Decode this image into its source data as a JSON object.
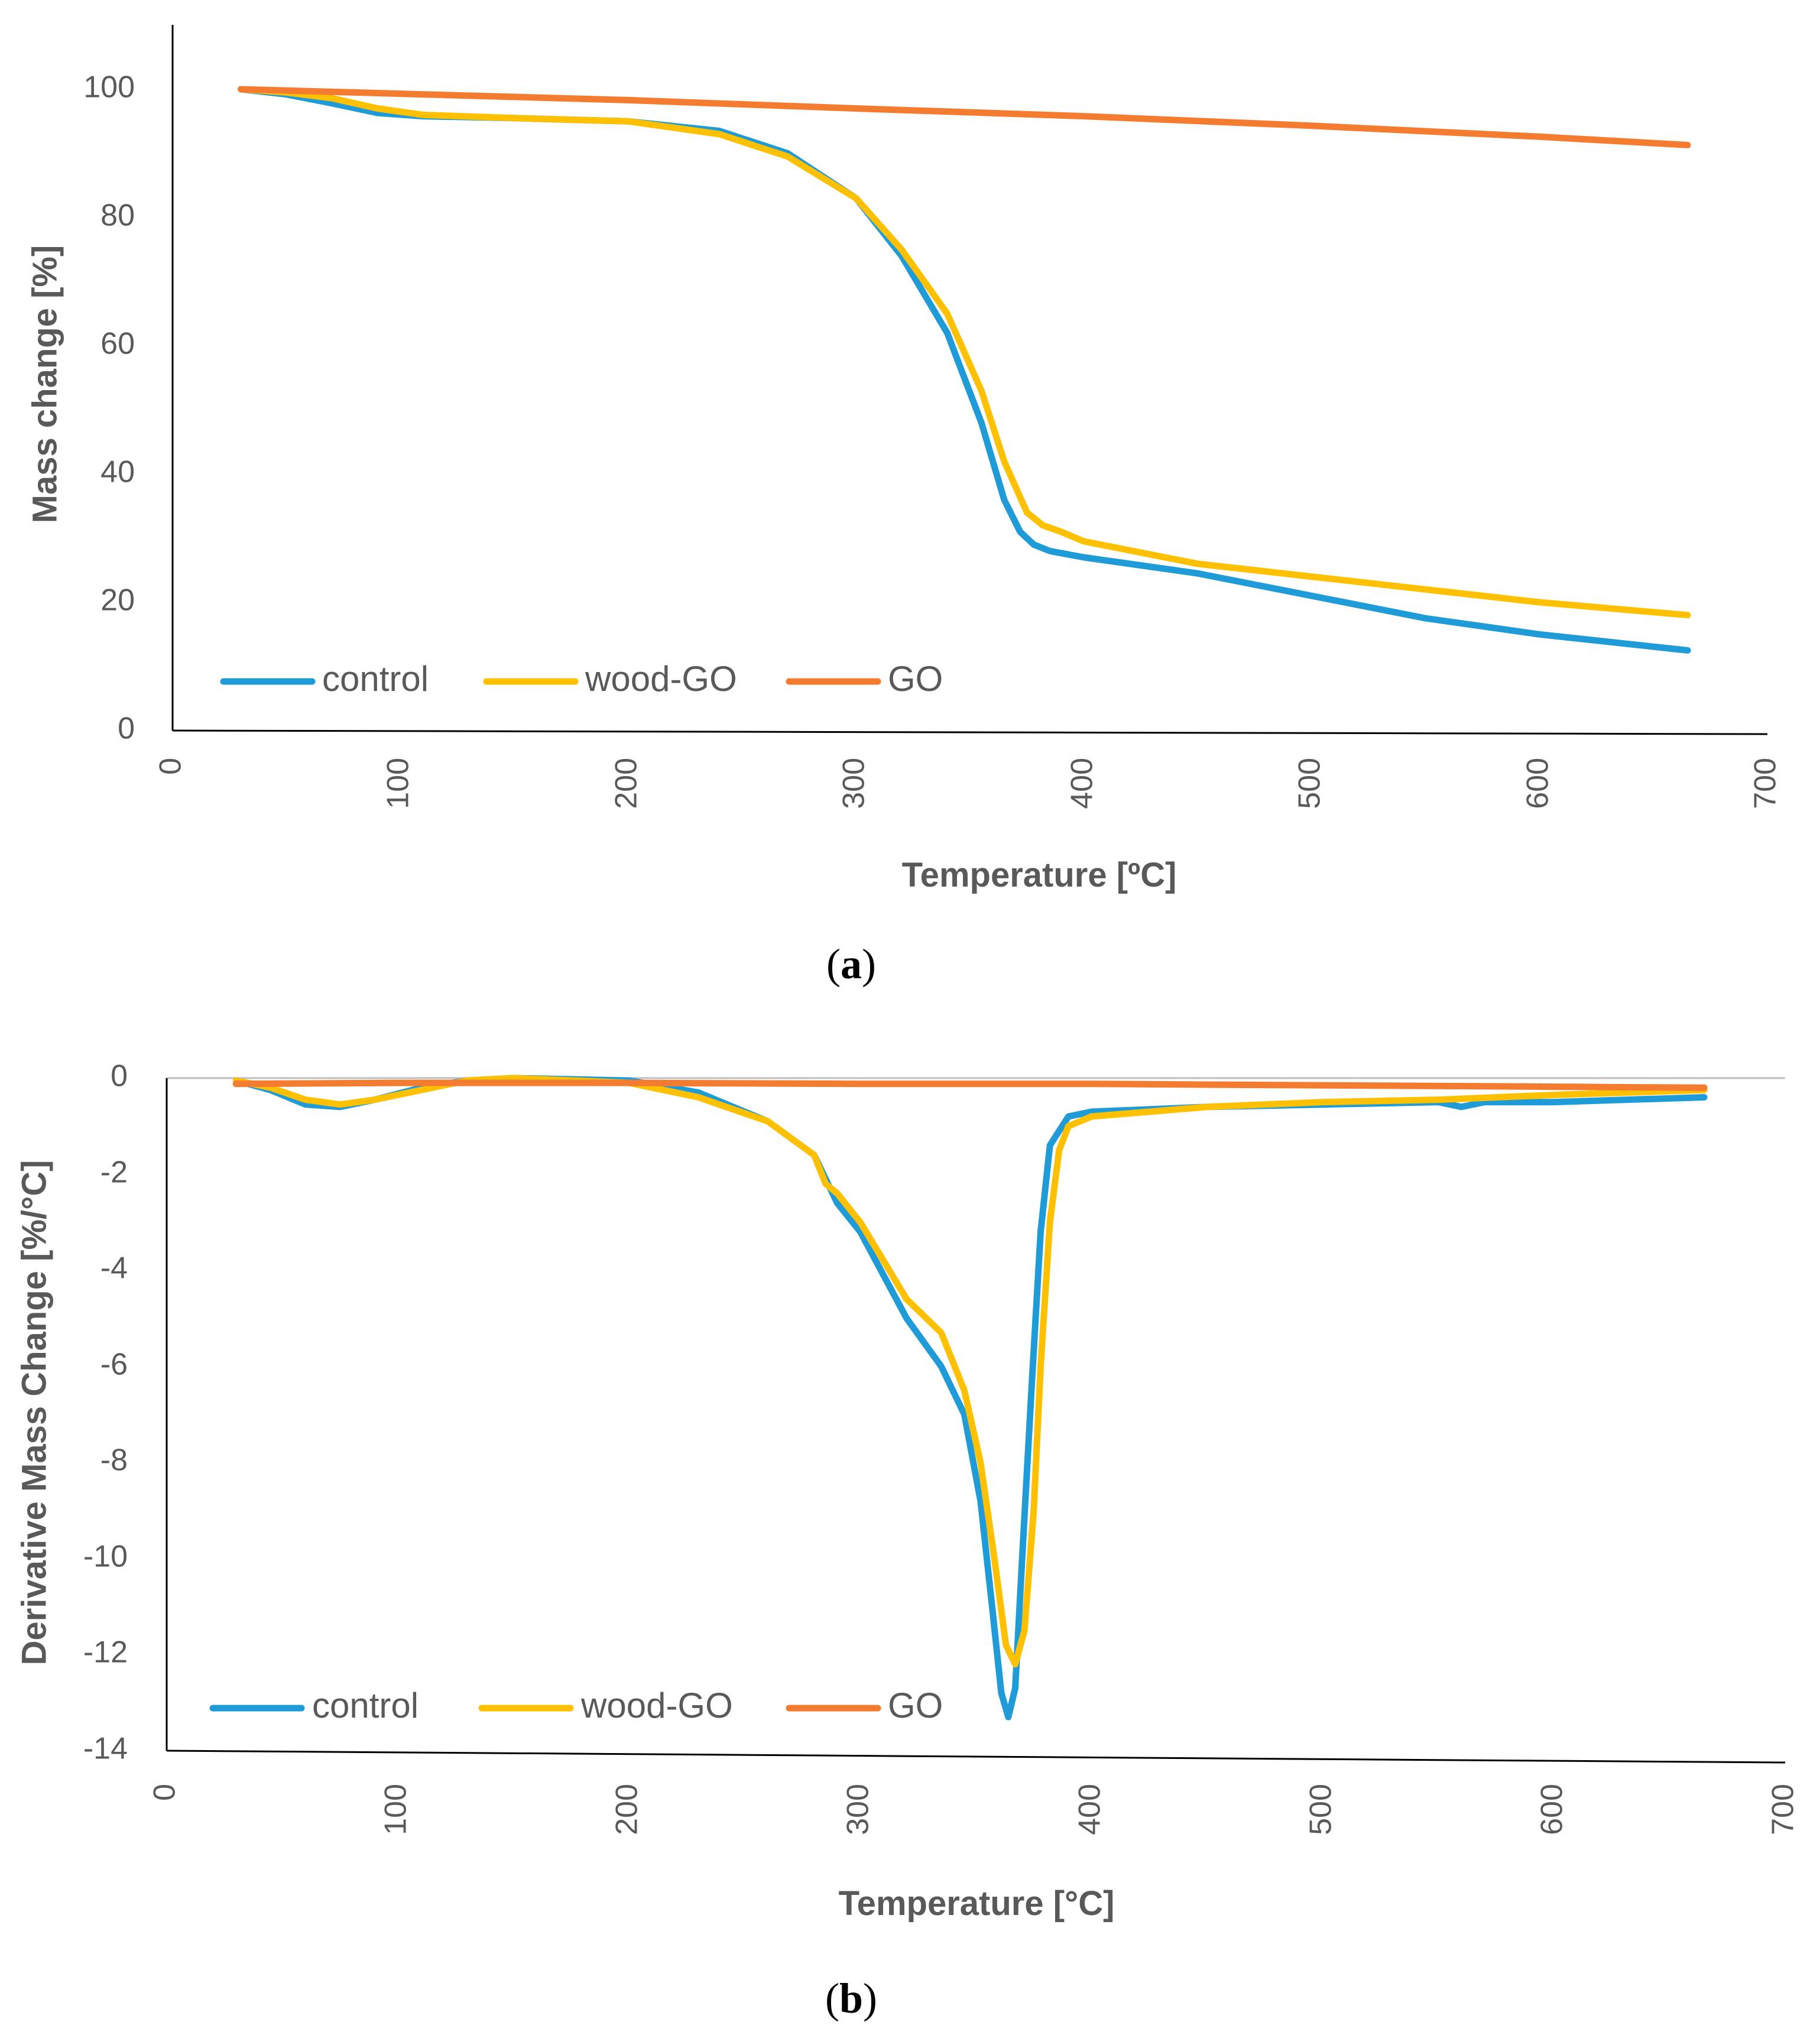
{
  "colors": {
    "control": "#1f9bd7",
    "wood_go": "#ffc000",
    "go": "#f47c30"
  },
  "chart_data": [
    {
      "panel": "(a)",
      "panel_letter": "a",
      "type": "line",
      "title": "",
      "xlabel": "Temperature [ºC]",
      "ylabel": "Mass change [%]",
      "xlim": [
        0,
        700
      ],
      "ylim": [
        0,
        110
      ],
      "x_ticks": [
        "0",
        "100",
        "200",
        "300",
        "400",
        "500",
        "600",
        "700"
      ],
      "y_ticks": [
        "0",
        "20",
        "40",
        "60",
        "80",
        "100"
      ],
      "legend_position": "bottom-left",
      "series": [
        {
          "name": "control",
          "color": "#1f9bd7",
          "x": [
            30,
            50,
            70,
            90,
            110,
            150,
            200,
            240,
            270,
            300,
            320,
            340,
            355,
            365,
            372,
            378,
            385,
            400,
            450,
            500,
            550,
            600,
            665
          ],
          "y": [
            100,
            99.2,
            97.8,
            96.3,
            95.8,
            95.5,
            95,
            93.5,
            90,
            83,
            74,
            62,
            48,
            36,
            31,
            29,
            28,
            27,
            24.5,
            21,
            17.5,
            15,
            12.5
          ]
        },
        {
          "name": "wood-GO",
          "color": "#ffc000",
          "x": [
            30,
            50,
            70,
            90,
            110,
            150,
            200,
            240,
            270,
            300,
            320,
            340,
            355,
            365,
            375,
            382,
            390,
            400,
            450,
            500,
            550,
            600,
            665
          ],
          "y": [
            100,
            99.5,
            98.6,
            97,
            96,
            95.5,
            95,
            93,
            89.5,
            83,
            75,
            65,
            53,
            42,
            34,
            32,
            31,
            29.5,
            26,
            24,
            22,
            20,
            18
          ]
        },
        {
          "name": "GO",
          "color": "#f47c30",
          "x": [
            30,
            100,
            200,
            300,
            400,
            500,
            600,
            665
          ],
          "y": [
            100,
            99.3,
            98.3,
            97,
            95.8,
            94.3,
            92.6,
            91.3
          ]
        }
      ]
    },
    {
      "panel": "(b)",
      "panel_letter": "b",
      "type": "line",
      "title": "",
      "xlabel": "Temperature [°C]",
      "ylabel": "Derivative Mass Change [%/°C]",
      "xlim": [
        0,
        700
      ],
      "ylim": [
        -14,
        0
      ],
      "x_ticks": [
        "0",
        "100",
        "200",
        "300",
        "400",
        "500",
        "600",
        "700"
      ],
      "y_ticks": [
        "0",
        "-2",
        "-4",
        "-6",
        "-8",
        "-10",
        "-12",
        "-14"
      ],
      "legend_position": "bottom-left",
      "series": [
        {
          "name": "control",
          "color": "#1f9bd7",
          "x": [
            30,
            45,
            60,
            75,
            90,
            110,
            130,
            150,
            200,
            230,
            260,
            280,
            285,
            290,
            300,
            320,
            335,
            345,
            352,
            357,
            361,
            364,
            367,
            370,
            374,
            378,
            382,
            390,
            400,
            450,
            500,
            550,
            560,
            570,
            600,
            665
          ],
          "y": [
            -0.05,
            -0.25,
            -0.55,
            -0.6,
            -0.45,
            -0.2,
            -0.05,
            0,
            -0.05,
            -0.3,
            -0.9,
            -1.6,
            -2.1,
            -2.6,
            -3.2,
            -5.0,
            -6.0,
            -7.0,
            -8.8,
            -11.0,
            -12.8,
            -13.3,
            -12.7,
            -10.0,
            -6.5,
            -3.2,
            -1.4,
            -0.8,
            -0.7,
            -0.6,
            -0.55,
            -0.5,
            -0.6,
            -0.5,
            -0.5,
            -0.4
          ]
        },
        {
          "name": "wood-GO",
          "color": "#ffc000",
          "x": [
            30,
            45,
            60,
            75,
            90,
            110,
            130,
            150,
            200,
            230,
            260,
            280,
            285,
            290,
            300,
            320,
            335,
            345,
            352,
            358,
            363,
            367,
            371,
            375,
            378,
            382,
            386,
            390,
            400,
            450,
            500,
            550,
            600,
            665
          ],
          "y": [
            -0.05,
            -0.2,
            -0.45,
            -0.55,
            -0.45,
            -0.25,
            -0.05,
            0,
            -0.1,
            -0.4,
            -0.9,
            -1.6,
            -2.2,
            -2.4,
            -3.0,
            -4.6,
            -5.3,
            -6.5,
            -8.0,
            -10.0,
            -11.8,
            -12.2,
            -11.5,
            -9.0,
            -6.0,
            -3.0,
            -1.5,
            -1.0,
            -0.8,
            -0.6,
            -0.5,
            -0.45,
            -0.35,
            -0.25
          ]
        },
        {
          "name": "GO",
          "color": "#f47c30",
          "x": [
            30,
            100,
            200,
            300,
            400,
            500,
            600,
            665
          ],
          "y": [
            -0.12,
            -0.1,
            -0.1,
            -0.12,
            -0.12,
            -0.15,
            -0.18,
            -0.2
          ]
        }
      ]
    }
  ]
}
